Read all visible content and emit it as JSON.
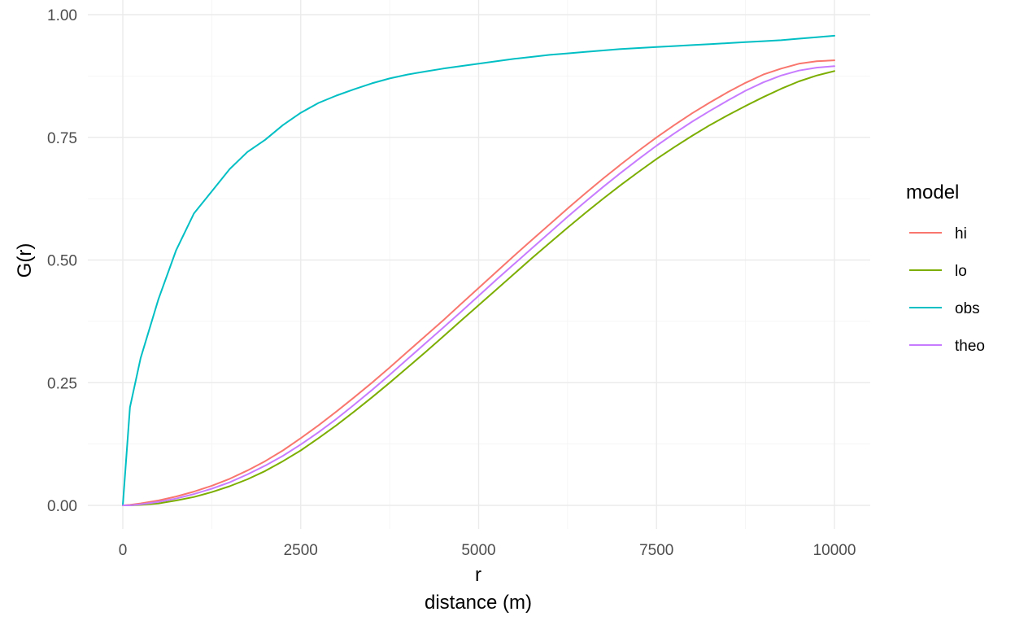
{
  "chart_data": {
    "type": "line",
    "xlabel_line1": "r",
    "xlabel_line2": "distance (m)",
    "ylabel": "G(r)",
    "xlim": [
      0,
      10000
    ],
    "ylim": [
      0,
      1
    ],
    "x_ticks": [
      0,
      2500,
      5000,
      7500,
      10000
    ],
    "x_tick_labels": [
      "0",
      "2500",
      "5000",
      "7500",
      "10000"
    ],
    "y_ticks": [
      0,
      0.25,
      0.5,
      0.75,
      1.0
    ],
    "y_tick_labels": [
      "0.00",
      "0.25",
      "0.50",
      "0.75",
      "1.00"
    ],
    "grid": true,
    "legend": {
      "title": "model",
      "position": "right",
      "entries": [
        "hi",
        "lo",
        "obs",
        "theo"
      ]
    },
    "x": [
      0,
      100,
      250,
      500,
      750,
      1000,
      1250,
      1500,
      1750,
      2000,
      2250,
      2500,
      2750,
      3000,
      3250,
      3500,
      3750,
      4000,
      4250,
      4500,
      4750,
      5000,
      5250,
      5500,
      5750,
      6000,
      6250,
      6500,
      6750,
      7000,
      7250,
      7500,
      7750,
      8000,
      8250,
      8500,
      8750,
      9000,
      9250,
      9500,
      9750,
      10000
    ],
    "series": [
      {
        "name": "hi",
        "color": "#F8766D",
        "values": [
          0.0,
          0.001,
          0.004,
          0.01,
          0.018,
          0.028,
          0.04,
          0.054,
          0.071,
          0.09,
          0.112,
          0.137,
          0.163,
          0.191,
          0.22,
          0.25,
          0.281,
          0.313,
          0.345,
          0.377,
          0.41,
          0.443,
          0.476,
          0.509,
          0.541,
          0.573,
          0.605,
          0.636,
          0.666,
          0.695,
          0.723,
          0.75,
          0.775,
          0.799,
          0.821,
          0.842,
          0.861,
          0.878,
          0.89,
          0.9,
          0.905,
          0.907
        ]
      },
      {
        "name": "lo",
        "color": "#7CAE00",
        "values": [
          0.0,
          0.0,
          0.001,
          0.004,
          0.01,
          0.017,
          0.027,
          0.039,
          0.053,
          0.07,
          0.09,
          0.112,
          0.137,
          0.163,
          0.191,
          0.22,
          0.25,
          0.281,
          0.312,
          0.344,
          0.376,
          0.408,
          0.44,
          0.472,
          0.504,
          0.535,
          0.566,
          0.596,
          0.625,
          0.653,
          0.68,
          0.706,
          0.73,
          0.753,
          0.775,
          0.795,
          0.814,
          0.832,
          0.849,
          0.864,
          0.876,
          0.885
        ]
      },
      {
        "name": "obs",
        "color": "#00BFC4",
        "values": [
          0.0,
          0.2,
          0.3,
          0.42,
          0.52,
          0.595,
          0.64,
          0.685,
          0.72,
          0.745,
          0.775,
          0.8,
          0.82,
          0.835,
          0.848,
          0.86,
          0.87,
          0.878,
          0.884,
          0.89,
          0.895,
          0.9,
          0.905,
          0.91,
          0.914,
          0.918,
          0.921,
          0.924,
          0.927,
          0.93,
          0.932,
          0.934,
          0.936,
          0.938,
          0.94,
          0.942,
          0.944,
          0.946,
          0.948,
          0.951,
          0.954,
          0.957
        ]
      },
      {
        "name": "theo",
        "color": "#C77CFF",
        "values": [
          0.0,
          0.0,
          0.002,
          0.007,
          0.014,
          0.023,
          0.034,
          0.047,
          0.063,
          0.081,
          0.101,
          0.124,
          0.149,
          0.176,
          0.205,
          0.235,
          0.266,
          0.298,
          0.33,
          0.362,
          0.394,
          0.427,
          0.46,
          0.492,
          0.524,
          0.556,
          0.588,
          0.619,
          0.649,
          0.678,
          0.706,
          0.733,
          0.758,
          0.782,
          0.804,
          0.825,
          0.845,
          0.862,
          0.876,
          0.886,
          0.892,
          0.895
        ]
      }
    ]
  }
}
